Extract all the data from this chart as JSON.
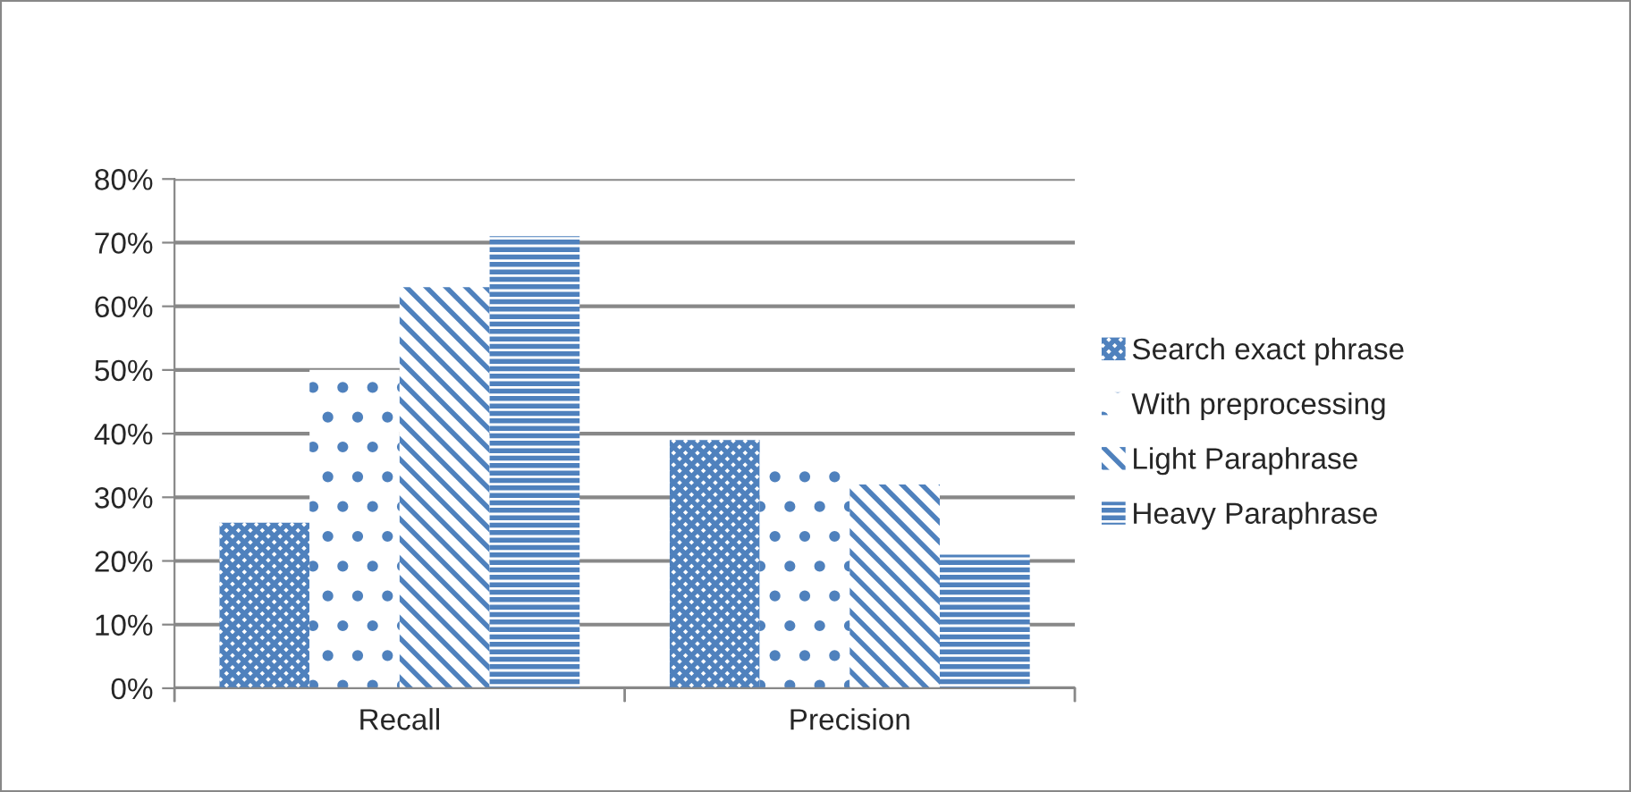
{
  "chart_data": {
    "type": "bar",
    "categories": [
      "Recall",
      "Precision"
    ],
    "series": [
      {
        "name": "Search exact phrase",
        "color": "#4f81bd",
        "values": [
          26,
          39
        ]
      },
      {
        "name": "With preprocessing",
        "color": "#4f81bd",
        "values": [
          50,
          37
        ]
      },
      {
        "name": "Light Paraphrase",
        "color": "#4f81bd",
        "values": [
          63,
          32
        ]
      },
      {
        "name": "Heavy Paraphrase",
        "color": "#4f81bd",
        "values": [
          71,
          21
        ]
      }
    ],
    "ylim": [
      0,
      80
    ],
    "yticks": [
      {
        "value": 0,
        "label": "0%"
      },
      {
        "value": 10,
        "label": "10%"
      },
      {
        "value": 20,
        "label": "20%"
      },
      {
        "value": 30,
        "label": "30%"
      },
      {
        "value": 40,
        "label": "40%"
      },
      {
        "value": 50,
        "label": "50%"
      },
      {
        "value": 60,
        "label": "60%"
      },
      {
        "value": 70,
        "label": "70%"
      },
      {
        "value": 80,
        "label": "80%"
      }
    ],
    "grid": "y",
    "legend": "right"
  }
}
